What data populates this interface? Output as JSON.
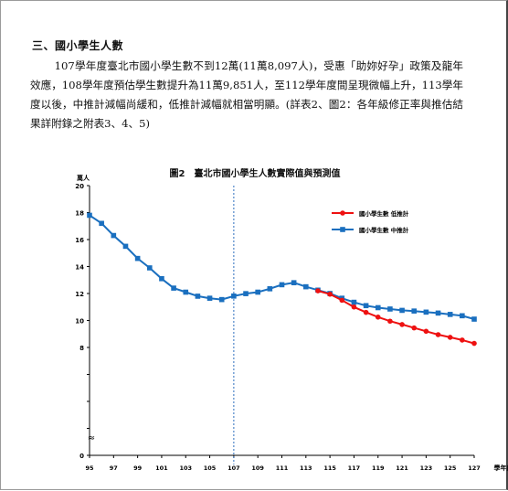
{
  "document": {
    "section_heading": "三、國小學生人數",
    "paragraph": "107學年度臺北市國小學生數不到12萬(11萬8,097人)，受惠「助妳好孕」政策及龍年效應，108學年度預估學生數提升為11萬9,851人，至112學年度間呈現微幅上升，113學年度以後，中推計減幅尚緩和，低推計減幅就相當明顯。(詳表2、圖2：各年級修正率與推估結果詳附錄之附表3、4、5)"
  },
  "colors": {
    "low_series": "#ee1111",
    "mid_series": "#1a6fbf",
    "divider": "#2f6fbf",
    "axis": "#000000"
  },
  "chart_data": {
    "type": "line",
    "title": "圖2　臺北市國小學生人數實際值與預測值",
    "ylabel": "萬人",
    "xlabel": "學年度",
    "ylim": [
      0,
      20
    ],
    "xlim": [
      95,
      127
    ],
    "y_ticks": [
      0,
      2,
      4,
      6,
      8,
      10,
      12,
      14,
      16,
      18,
      20
    ],
    "y_tick_labels": [
      "0",
      "",
      "",
      "",
      "8",
      "10",
      "12",
      "14",
      "16",
      "18",
      "20"
    ],
    "axis_break_symbol": "≈",
    "x_ticks": [
      95,
      97,
      99,
      101,
      103,
      105,
      107,
      109,
      111,
      113,
      115,
      117,
      119,
      121,
      123,
      125,
      127
    ],
    "divider_year": 107,
    "legend_position": "top-right",
    "series": [
      {
        "name": "國小學生數 低推計",
        "key": "low",
        "x": [
          114,
          115,
          116,
          117,
          118,
          119,
          120,
          121,
          122,
          123,
          124,
          125,
          126,
          127
        ],
        "values": [
          12.2,
          11.95,
          11.5,
          11.0,
          10.6,
          10.25,
          9.95,
          9.7,
          9.45,
          9.2,
          8.95,
          8.75,
          8.55,
          8.3
        ]
      },
      {
        "name": "國小學生數 中推計",
        "key": "mid",
        "x": [
          95,
          96,
          97,
          98,
          99,
          100,
          101,
          102,
          103,
          104,
          105,
          106,
          107,
          108,
          109,
          110,
          111,
          112,
          113,
          114,
          115,
          116,
          117,
          118,
          119,
          120,
          121,
          122,
          123,
          124,
          125,
          126,
          127
        ],
        "values": [
          17.8,
          17.2,
          16.3,
          15.5,
          14.6,
          13.9,
          13.1,
          12.4,
          12.1,
          11.8,
          11.65,
          11.55,
          11.81,
          11.99,
          12.1,
          12.35,
          12.65,
          12.8,
          12.5,
          12.25,
          12.0,
          11.65,
          11.35,
          11.1,
          10.95,
          10.85,
          10.75,
          10.7,
          10.62,
          10.55,
          10.45,
          10.35,
          10.1
        ]
      }
    ]
  }
}
